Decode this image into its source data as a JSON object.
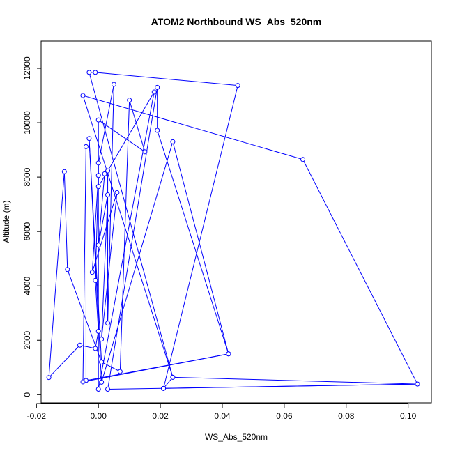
{
  "chart_data": {
    "type": "line",
    "title": "ATOM2 Northbound WS_Abs_520nm",
    "xlabel": "WS_Abs_520nm",
    "ylabel": "Altitude (m)",
    "xlim": [
      -0.0185,
      0.1075
    ],
    "ylim": [
      -300,
      13000
    ],
    "x_ticks": [
      -0.02,
      0.0,
      0.02,
      0.04,
      0.06,
      0.08,
      0.1
    ],
    "x_tick_labels": [
      "-0.02",
      "0.00",
      "0.02",
      "0.04",
      "0.06",
      "0.08",
      "0.10"
    ],
    "y_ticks": [
      0,
      2000,
      4000,
      6000,
      8000,
      10000,
      12000
    ],
    "y_tick_labels": [
      "0",
      "2000",
      "4000",
      "6000",
      "8000",
      "10000",
      "12000"
    ],
    "grid": false,
    "legend": "none",
    "series": [
      {
        "color": "#0000ff",
        "marker": "open-circle",
        "points": [
          {
            "x": 0.021,
            "y": 230
          },
          {
            "x": 0.103,
            "y": 390
          },
          {
            "x": 0.024,
            "y": 640
          },
          {
            "x": -0.003,
            "y": 11850
          },
          {
            "x": -0.001,
            "y": 11850
          },
          {
            "x": 0.045,
            "y": 11370
          },
          {
            "x": 0.021,
            "y": 230
          },
          {
            "x": 0.024,
            "y": 640
          },
          {
            "x": -0.005,
            "y": 11000
          },
          {
            "x": 0.066,
            "y": 8650
          },
          {
            "x": 0.103,
            "y": 390
          },
          {
            "x": 0.003,
            "y": 200
          },
          {
            "x": 0.019,
            "y": 11300
          },
          {
            "x": 0.019,
            "y": 9720
          },
          {
            "x": 0.042,
            "y": 1500
          },
          {
            "x": -0.004,
            "y": 520
          },
          {
            "x": -0.004,
            "y": 9120
          },
          {
            "x": -0.005,
            "y": 470
          },
          {
            "x": 0.042,
            "y": 1500
          },
          {
            "x": 0.024,
            "y": 9300
          },
          {
            "x": 0.001,
            "y": 460
          },
          {
            "x": -0.003,
            "y": 9420
          },
          {
            "x": 0.001,
            "y": 1200
          },
          {
            "x": 0.007,
            "y": 850
          },
          {
            "x": 0.01,
            "y": 10830
          },
          {
            "x": 0.015,
            "y": 8930
          },
          {
            "x": 0.0,
            "y": 10100
          },
          {
            "x": 0.0,
            "y": 7650
          },
          {
            "x": 0.018,
            "y": 11130
          },
          {
            "x": 0.0,
            "y": 200
          },
          {
            "x": 0.0,
            "y": 8520
          },
          {
            "x": 0.005,
            "y": 11410
          },
          {
            "x": 0.003,
            "y": 2630
          },
          {
            "x": 0.003,
            "y": 8230
          },
          {
            "x": 0.002,
            "y": 8120
          },
          {
            "x": 0.0,
            "y": 5500
          },
          {
            "x": 0.003,
            "y": 7350
          },
          {
            "x": 0.001,
            "y": 2040
          },
          {
            "x": 0.006,
            "y": 7430
          },
          {
            "x": -0.002,
            "y": 4500
          },
          {
            "x": 0.0,
            "y": 8060
          },
          {
            "x": -0.001,
            "y": 4200
          },
          {
            "x": 0.0,
            "y": 2330
          },
          {
            "x": -0.001,
            "y": 1700
          },
          {
            "x": -0.006,
            "y": 1820
          },
          {
            "x": -0.016,
            "y": 630
          },
          {
            "x": -0.011,
            "y": 8200
          },
          {
            "x": -0.01,
            "y": 4600
          },
          {
            "x": 0.001,
            "y": 1200
          }
        ]
      }
    ]
  }
}
